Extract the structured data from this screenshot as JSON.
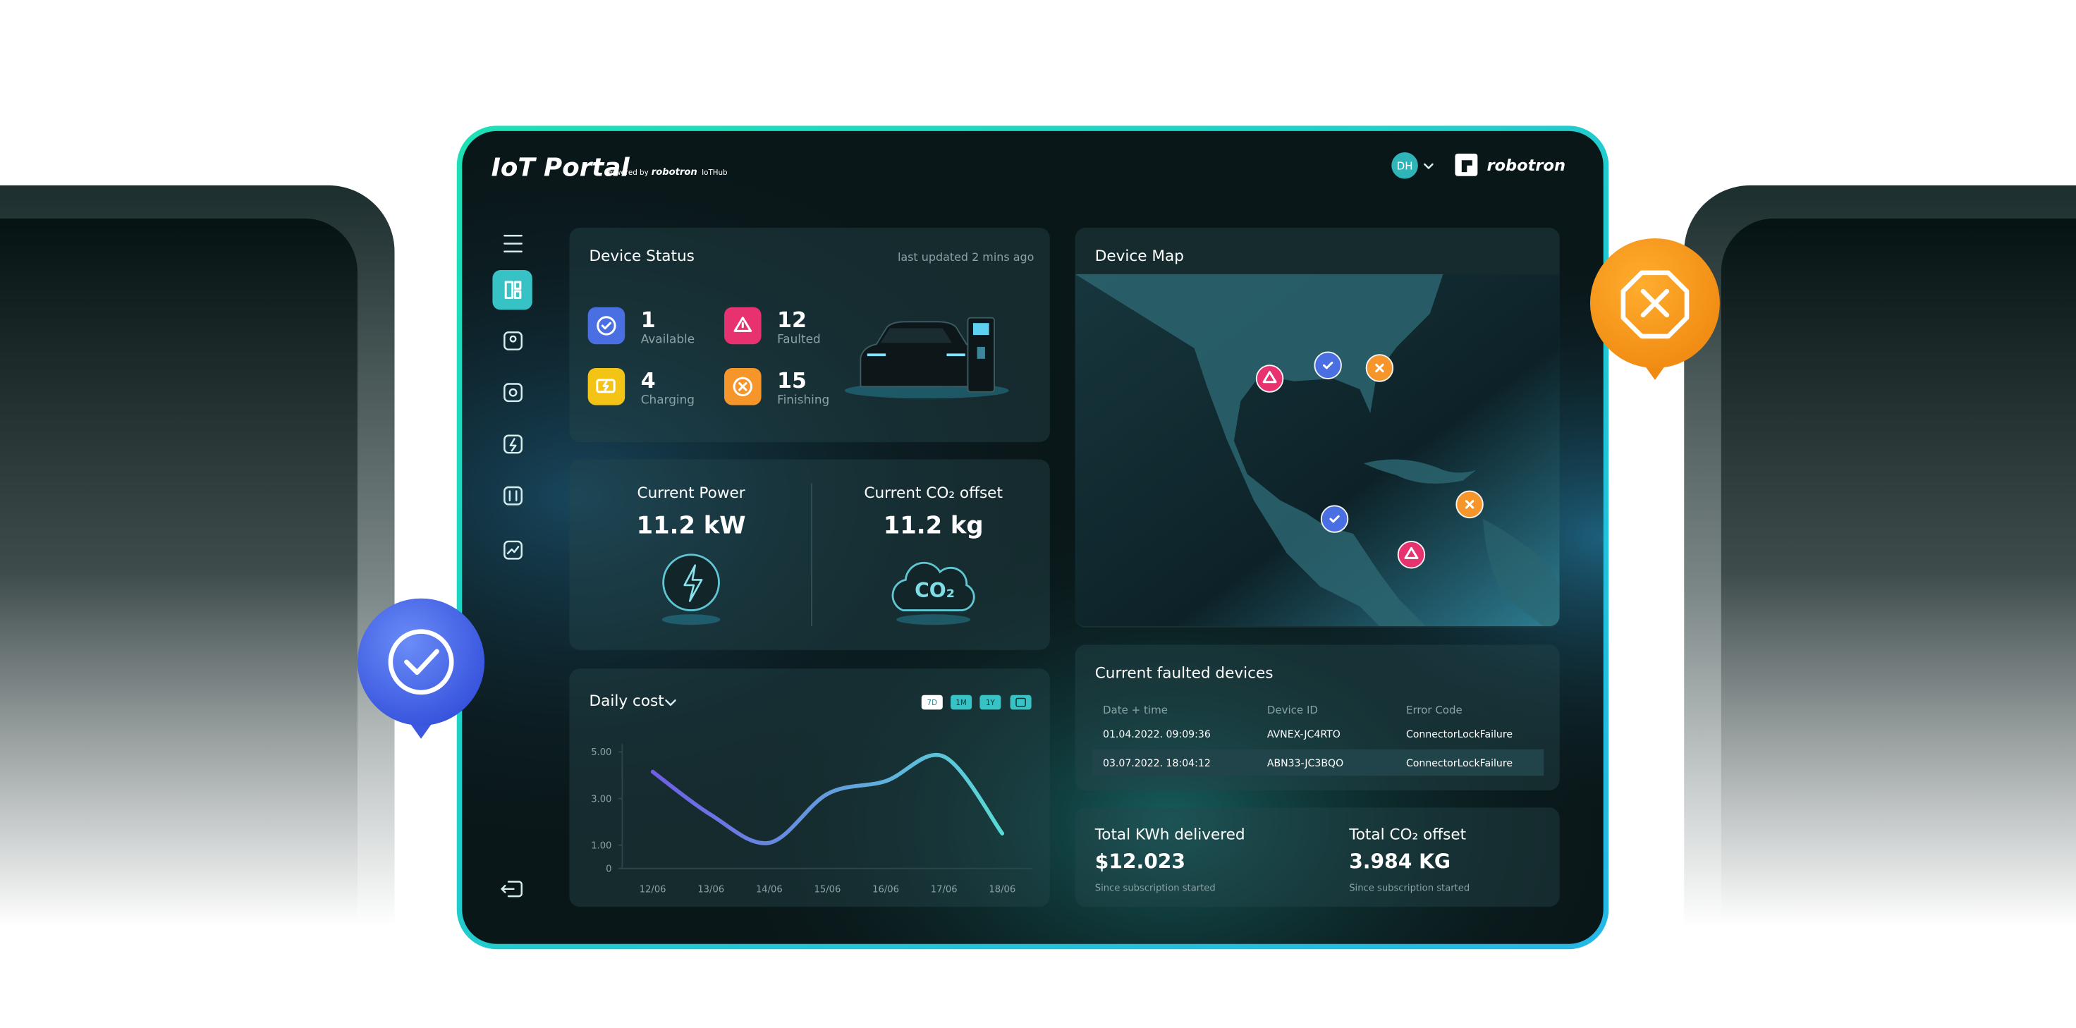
{
  "header": {
    "title": "IoT Portal",
    "powered_by": "Powered by",
    "powered_brand": "robotron",
    "product": "IoTHub",
    "avatar": "DH",
    "logo": "robotron"
  },
  "device_status": {
    "title": "Device Status",
    "updated": "last updated 2 mins ago",
    "items": [
      {
        "count": 1,
        "label": "Available"
      },
      {
        "count": 12,
        "label": "Faulted"
      },
      {
        "count": 4,
        "label": "Charging"
      },
      {
        "count": 15,
        "label": "Finishing"
      }
    ]
  },
  "power": {
    "label": "Current Power",
    "value": "11.2 kW"
  },
  "co2": {
    "label": "Current CO₂ offset",
    "value": "11.2 kg",
    "icon": "CO₂"
  },
  "daily_cost": {
    "title": "Daily cost",
    "ranges": [
      "7D",
      "1M",
      "1Y"
    ],
    "chart": {
      "type": "line",
      "categories": [
        "12/06",
        "13/06",
        "14/06",
        "15/06",
        "16/06",
        "17/06",
        "18/06"
      ],
      "values": [
        4.15,
        2.3,
        1.1,
        3.2,
        3.75,
        4.8,
        1.5
      ],
      "ylim": [
        0,
        5
      ],
      "yticks": [
        {
          "value": 5,
          "label": "5.00"
        },
        {
          "value": 3,
          "label": "3.00"
        },
        {
          "value": 1,
          "label": "1.00"
        },
        0
      ]
    }
  },
  "device_map": {
    "title": "Device Map"
  },
  "faulted": {
    "title": "Current faulted devices",
    "columns": [
      "Date + time",
      "Device ID",
      "Error Code"
    ],
    "rows": [
      [
        "01.04.2022. 09:09:36",
        "AVNEX-JC4RTO",
        "ConnectorLockFailure"
      ],
      [
        "03.07.2022. 18:04:12",
        "ABN33-JC3BQO",
        "ConnectorLockFailure"
      ]
    ]
  },
  "totals": [
    {
      "label": "Total KWh delivered",
      "value": "$12.023",
      "note": "Since subscription started"
    },
    {
      "label": "Total CO₂ offset",
      "value": "3.984 KG",
      "note": "Since subscription started"
    }
  ]
}
